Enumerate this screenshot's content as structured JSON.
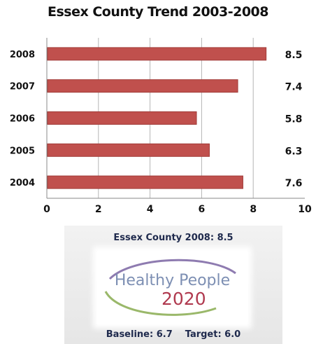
{
  "chart_data": {
    "type": "bar",
    "orientation": "horizontal",
    "title": "Essex County  Trend 2003-2008",
    "xlabel": "",
    "ylabel": "",
    "categories": [
      "2008",
      "2007",
      "2006",
      "2005",
      "2004"
    ],
    "values": [
      8.5,
      7.4,
      5.8,
      6.3,
      7.6
    ],
    "value_labels": [
      "8.5",
      "7.4",
      "5.8",
      "6.3",
      "7.6"
    ],
    "xlim": [
      0,
      10
    ],
    "xticks": [
      "0",
      "2",
      "4",
      "6",
      "8",
      "10"
    ],
    "grid": "vertical",
    "bar_color": "#c0504d"
  },
  "panel": {
    "header": "Essex County 2008: 8.5",
    "logo_line1": "Healthy People",
    "logo_line2": "2020",
    "baseline": "Baseline:  6.7",
    "target": "Target: 6.0",
    "text_color": "#1f2a4d"
  }
}
